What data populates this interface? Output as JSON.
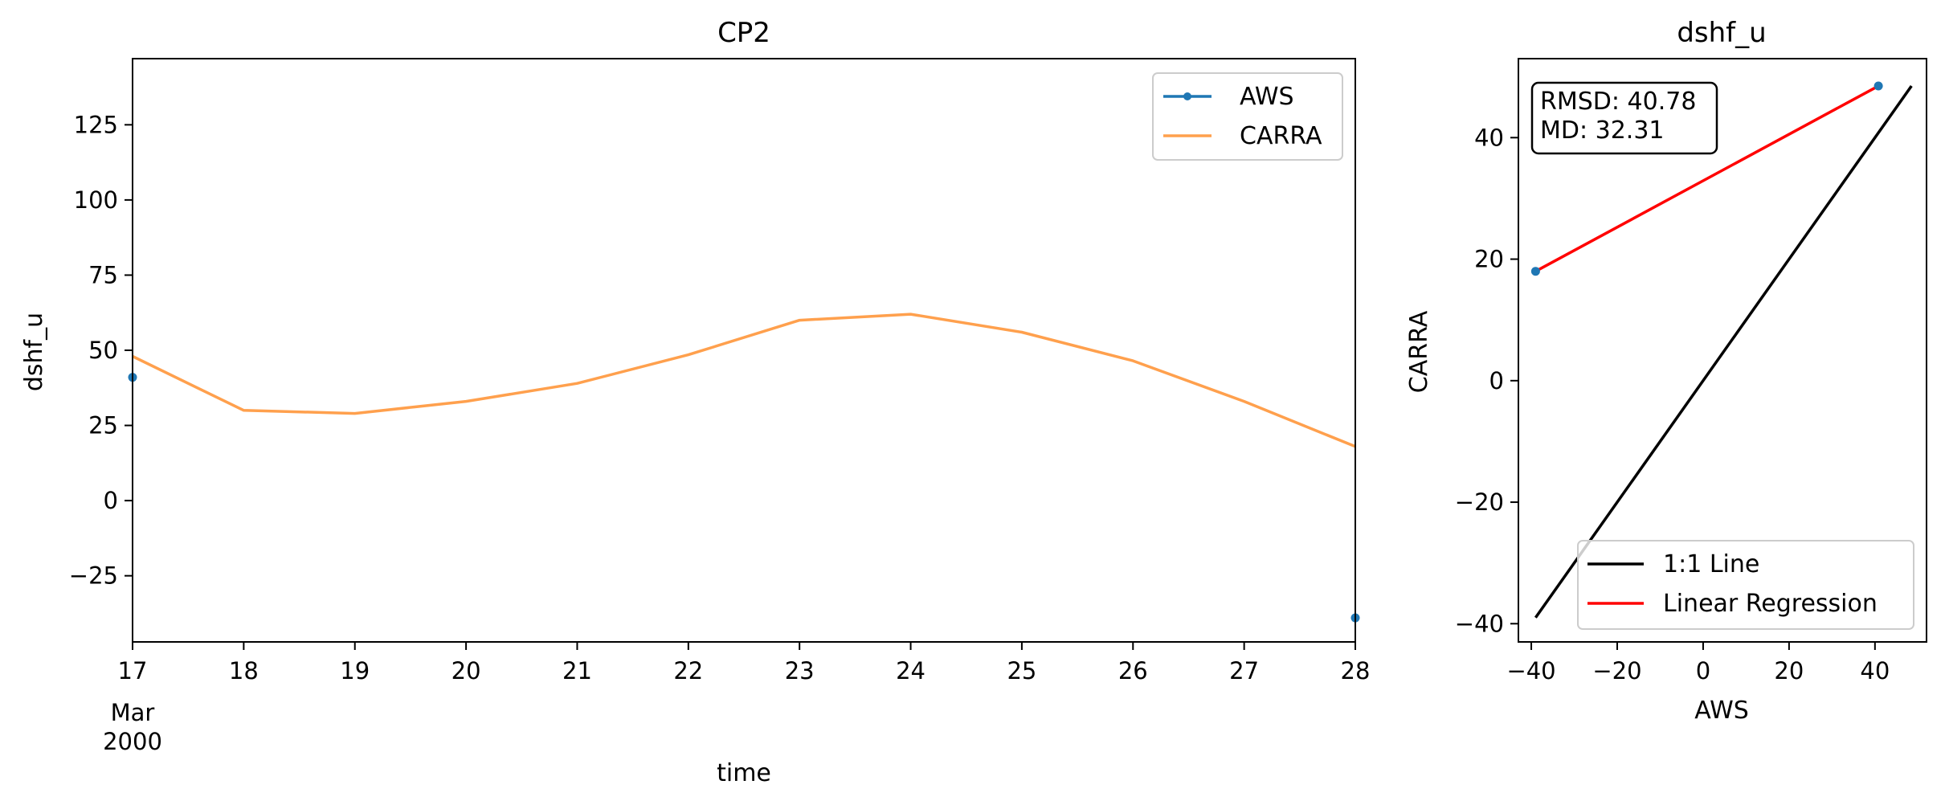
{
  "chart_data": [
    {
      "type": "line",
      "title": "CP2",
      "xlabel": "time",
      "ylabel": "dshf_u",
      "x_ticks": [
        "17",
        "18",
        "19",
        "20",
        "21",
        "22",
        "23",
        "24",
        "25",
        "26",
        "27",
        "28"
      ],
      "x_tick_sub": [
        "Mar",
        "2000"
      ],
      "x": [
        "2000-03-17",
        "2000-03-18",
        "2000-03-19",
        "2000-03-20",
        "2000-03-21",
        "2000-03-22",
        "2000-03-23",
        "2000-03-24",
        "2000-03-25",
        "2000-03-26",
        "2000-03-27",
        "2000-03-28"
      ],
      "xlim": [
        "2000-03-17",
        "2000-03-28"
      ],
      "y_ticks": [
        "125",
        "100",
        "75",
        "50",
        "25",
        "0",
        "−25"
      ],
      "ylim": [
        -47,
        147
      ],
      "legend_position": "upper right",
      "series": [
        {
          "name": "AWS",
          "color": "#1f77b4",
          "style": "line with point markers",
          "points": [
            {
              "x": "2000-03-17",
              "y": 41
            },
            {
              "x": "2000-03-28",
              "y": -39
            }
          ]
        },
        {
          "name": "CARRA",
          "color": "#ffa04d",
          "style": "line",
          "values": [
            48,
            30,
            29,
            33,
            39,
            48.5,
            60,
            62,
            56,
            46.5,
            33,
            18
          ]
        }
      ]
    },
    {
      "type": "scatter",
      "title": "dshf_u",
      "xlabel": "AWS",
      "ylabel": "CARRA",
      "x_ticks": [
        "−40",
        "−20",
        "0",
        "20",
        "40"
      ],
      "y_ticks": [
        "40",
        "20",
        "0",
        "−20",
        "−40"
      ],
      "xlim": [
        -43,
        52
      ],
      "ylim": [
        -43,
        53
      ],
      "annotation": [
        "RMSD: 40.78",
        "MD: 32.31"
      ],
      "legend_position": "lower right",
      "points": [
        {
          "x": -39,
          "y": 18,
          "color": "#1f77b4"
        },
        {
          "x": 40.8,
          "y": 48.5,
          "color": "#1f77b4"
        }
      ],
      "lines": [
        {
          "name": "1:1 Line",
          "color": "#000000",
          "x": [
            -39,
            48.5
          ],
          "y": [
            -39,
            48.5
          ]
        },
        {
          "name": "Linear Regression",
          "color": "#ff0000",
          "x": [
            -39,
            40.8
          ],
          "y": [
            18,
            48.5
          ]
        }
      ]
    }
  ]
}
